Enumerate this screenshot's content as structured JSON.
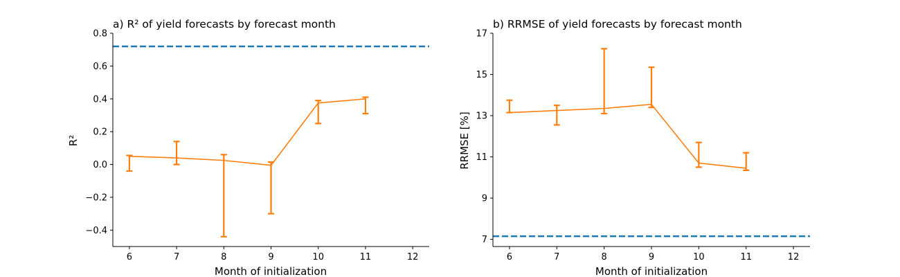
{
  "chart_data": [
    {
      "type": "line",
      "title": "a) R² of yield forecasts by forecast month",
      "xlabel": "Month of initialization",
      "ylabel": "R²",
      "xlim": [
        5.65,
        12.35
      ],
      "ylim": [
        -0.5,
        0.8
      ],
      "xticks": [
        6,
        7,
        8,
        9,
        10,
        11,
        12
      ],
      "yticks": [
        -0.4,
        -0.2,
        0.0,
        0.2,
        0.4,
        0.6,
        0.8
      ],
      "ytick_labels": [
        "−0.4",
        "−0.2",
        "0.0",
        "0.2",
        "0.4",
        "0.6",
        "0.8"
      ],
      "reference_line": {
        "y": 0.72,
        "color": "#1f77b4",
        "style": "dashed"
      },
      "series": [
        {
          "color": "#ff7f0e",
          "x": [
            6,
            7,
            8,
            9,
            10,
            11
          ],
          "y": [
            0.05,
            0.04,
            0.025,
            -0.005,
            0.375,
            0.4
          ],
          "err_low": [
            -0.04,
            0.0,
            -0.44,
            -0.3,
            0.25,
            0.31
          ],
          "err_high": [
            0.055,
            0.14,
            0.06,
            0.015,
            0.39,
            0.41
          ]
        }
      ],
      "grid": false
    },
    {
      "type": "line",
      "title": "b) RRMSE of yield forecasts by forecast month",
      "xlabel": "Month of initialization",
      "ylabel": "RRMSE [%]",
      "xlim": [
        5.65,
        12.35
      ],
      "ylim": [
        6.65,
        17
      ],
      "xticks": [
        6,
        7,
        8,
        9,
        10,
        11,
        12
      ],
      "yticks": [
        7,
        9,
        11,
        13,
        15,
        17
      ],
      "ytick_labels": [
        "7",
        "9",
        "11",
        "13",
        "15",
        "17"
      ],
      "reference_line": {
        "y": 7.15,
        "color": "#1f77b4",
        "style": "dashed"
      },
      "series": [
        {
          "color": "#ff7f0e",
          "x": [
            6,
            7,
            8,
            9,
            10,
            11
          ],
          "y": [
            13.15,
            13.25,
            13.35,
            13.55,
            10.7,
            10.45
          ],
          "err_low": [
            13.15,
            12.55,
            13.1,
            13.4,
            10.5,
            10.35
          ],
          "err_high": [
            13.75,
            13.5,
            16.25,
            15.35,
            11.7,
            11.2
          ]
        }
      ],
      "grid": false
    }
  ]
}
